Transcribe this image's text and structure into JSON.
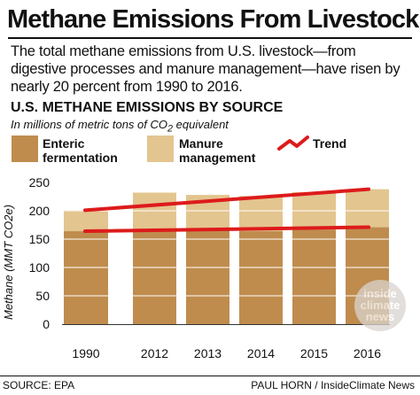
{
  "header": {
    "title": "Methane Emissions From Livestock",
    "subtitle": "The total methane emissions from U.S. livestock—from digestive processes and manure management—have risen by nearly 20 percent from 1990 to 2016."
  },
  "chart_heading": "U.S. METHANE EMISSIONS BY SOURCE",
  "chart_units": {
    "before": "In millions of metric tons of CO",
    "sub": "2",
    "after": " equivalent"
  },
  "legend": {
    "enteric": {
      "line1": "Enteric",
      "line2": "fermentation",
      "color": "#bf8c4e"
    },
    "manure": {
      "line1": "Manure",
      "line2": "management",
      "color": "#e3c58f"
    },
    "trend": {
      "label": "Trend",
      "color": "#dd1b1b"
    }
  },
  "chart_data": {
    "type": "bar",
    "stacked": true,
    "categories": [
      "1990",
      "2012",
      "2013",
      "2014",
      "2015",
      "2016"
    ],
    "series": [
      {
        "name": "Enteric fermentation",
        "color": "#bf8c4e",
        "values": [
          164,
          166,
          165,
          164,
          167,
          171
        ]
      },
      {
        "name": "Manure management",
        "color": "#e3c58f",
        "values": [
          37,
          66,
          63,
          62,
          66,
          67
        ]
      }
    ],
    "trend_lines": [
      {
        "name": "Trend",
        "color": "#dd1b1b",
        "from": [
          "1990",
          201
        ],
        "to": [
          "2016",
          238
        ]
      },
      {
        "name": "Trend",
        "color": "#dd1b1b",
        "from": [
          "1990",
          164
        ],
        "to": [
          "2016",
          171
        ]
      }
    ],
    "ylabel": "Methane (MMT CO2e)",
    "yticks": [
      0,
      50,
      100,
      150,
      200,
      250
    ],
    "ylim": [
      0,
      250
    ],
    "grid": true
  },
  "footer": {
    "source": "SOURCE: EPA",
    "credit": "PAUL HORN / InsideClimate News"
  },
  "watermark": {
    "line1": "inside",
    "line2": "climate",
    "line3": "news"
  }
}
